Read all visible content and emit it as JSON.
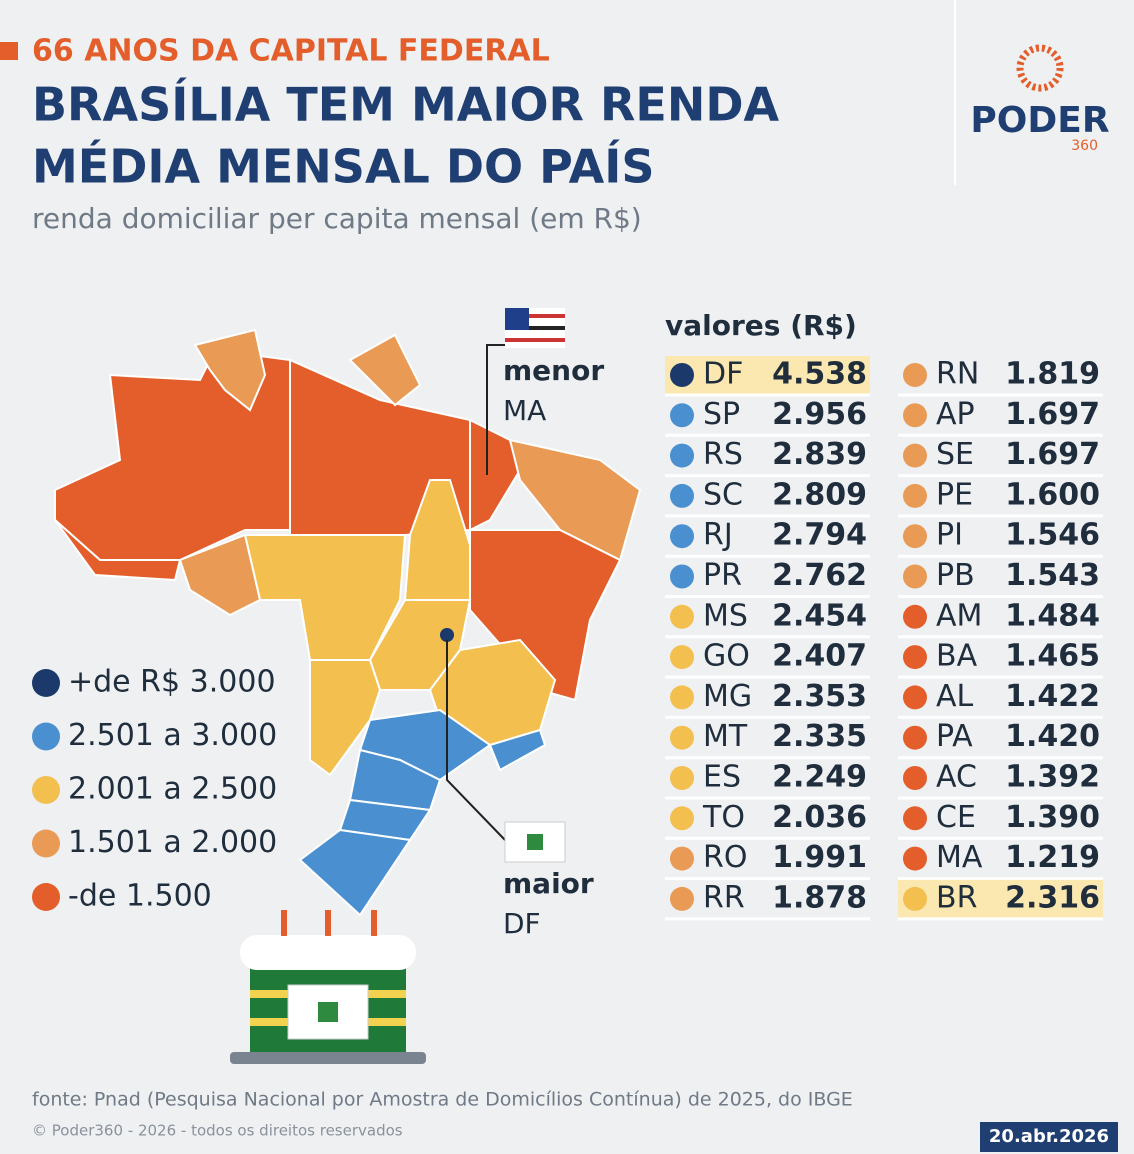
{
  "header": {
    "kicker": "66 ANOS DA CAPITAL FEDERAL",
    "title": [
      "BRASÍLIA TEM MAIOR RENDA",
      "MÉDIA MENSAL DO PAÍS"
    ],
    "subtitle": "renda domiciliar per capita mensal (em R$)",
    "logo": "PODER",
    "logo_sub": "360"
  },
  "map": {
    "lowest": {
      "label": "menor",
      "state": "MA"
    },
    "highest": {
      "label": "maior",
      "state": "DF"
    }
  },
  "legend": [
    {
      "label": "+de R$ 3.000",
      "color": "#1b3a6b"
    },
    {
      "label": "2.501 a 3.000",
      "color": "#4a90d0"
    },
    {
      "label": "2.001 a 2.500",
      "color": "#f3bf4f"
    },
    {
      "label": "1.501 a 2.000",
      "color": "#e99a55"
    },
    {
      "label": "-de 1.500",
      "color": "#e35e2a"
    }
  ],
  "table": {
    "heading": "valores (R$)",
    "rows": [
      {
        "state": "DF",
        "value": "4.538",
        "color": "#1b3a6b",
        "highlight": true
      },
      {
        "state": "SP",
        "value": "2.956",
        "color": "#4a90d0"
      },
      {
        "state": "RS",
        "value": "2.839",
        "color": "#4a90d0"
      },
      {
        "state": "SC",
        "value": "2.809",
        "color": "#4a90d0"
      },
      {
        "state": "RJ",
        "value": "2.794",
        "color": "#4a90d0"
      },
      {
        "state": "PR",
        "value": "2.762",
        "color": "#4a90d0"
      },
      {
        "state": "MS",
        "value": "2.454",
        "color": "#f3bf4f"
      },
      {
        "state": "GO",
        "value": "2.407",
        "color": "#f3bf4f"
      },
      {
        "state": "MG",
        "value": "2.353",
        "color": "#f3bf4f"
      },
      {
        "state": "MT",
        "value": "2.335",
        "color": "#f3bf4f"
      },
      {
        "state": "ES",
        "value": "2.249",
        "color": "#f3bf4f"
      },
      {
        "state": "TO",
        "value": "2.036",
        "color": "#f3bf4f"
      },
      {
        "state": "RO",
        "value": "1.991",
        "color": "#e99a55"
      },
      {
        "state": "RR",
        "value": "1.878",
        "color": "#e99a55"
      },
      {
        "state": "RN",
        "value": "1.819",
        "color": "#e99a55"
      },
      {
        "state": "AP",
        "value": "1.697",
        "color": "#e99a55"
      },
      {
        "state": "SE",
        "value": "1.697",
        "color": "#e99a55"
      },
      {
        "state": "PE",
        "value": "1.600",
        "color": "#e99a55"
      },
      {
        "state": "PI",
        "value": "1.546",
        "color": "#e99a55"
      },
      {
        "state": "PB",
        "value": "1.543",
        "color": "#e99a55"
      },
      {
        "state": "AM",
        "value": "1.484",
        "color": "#e35e2a"
      },
      {
        "state": "BA",
        "value": "1.465",
        "color": "#e35e2a"
      },
      {
        "state": "AL",
        "value": "1.422",
        "color": "#e35e2a"
      },
      {
        "state": "PA",
        "value": "1.420",
        "color": "#e35e2a"
      },
      {
        "state": "AC",
        "value": "1.392",
        "color": "#e35e2a"
      },
      {
        "state": "CE",
        "value": "1.390",
        "color": "#e35e2a"
      },
      {
        "state": "MA",
        "value": "1.219",
        "color": "#e35e2a"
      },
      {
        "state": "BR",
        "value": "2.316",
        "color": "#f3bf4f",
        "highlight": true
      }
    ]
  },
  "footer": {
    "source": "fonte: Pnad (Pesquisa Nacional por Amostra de Domicílios Contínua) de 2025, do IBGE",
    "copyright": "© Poder360 - 2026 - todos os direitos reservados",
    "date": "20.abr.2026"
  }
}
